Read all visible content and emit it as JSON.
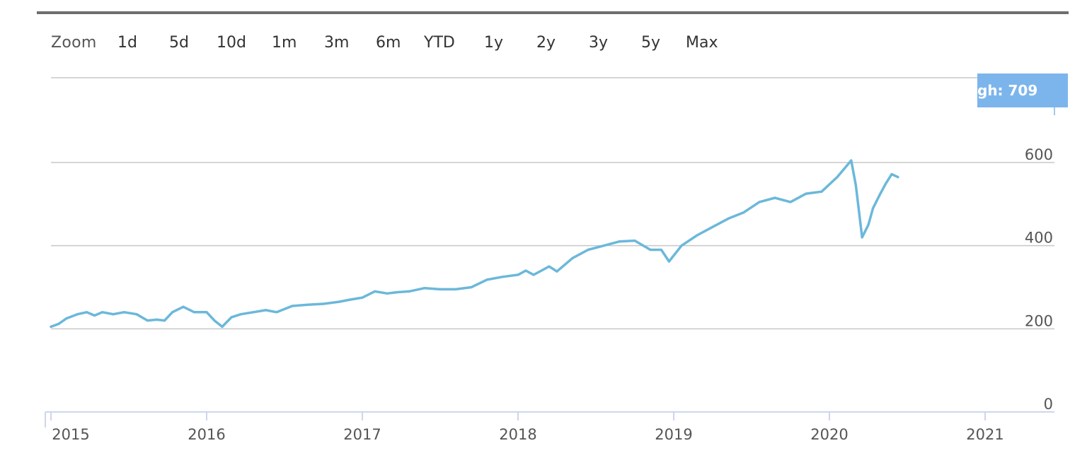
{
  "toolbar": {
    "zoom_label": "Zoom",
    "buttons": [
      "1d",
      "5d",
      "10d",
      "1m",
      "3m",
      "6m",
      "YTD",
      "1y",
      "2y",
      "3y",
      "5y",
      "Max"
    ]
  },
  "badge": {
    "text": "gh: 709"
  },
  "colors": {
    "line": "#6bb8da",
    "badge_bg": "#7cb5ec",
    "grid": "#c8c8c8",
    "axis": "#ccd6eb"
  },
  "chart_data": {
    "type": "line",
    "title": "",
    "xlabel": "",
    "ylabel": "",
    "xlim": [
      2015.0,
      2021.5
    ],
    "ylim": [
      0,
      709
    ],
    "x_ticks": [
      "2015",
      "2016",
      "2017",
      "2018",
      "2019",
      "2020",
      "2021"
    ],
    "y_ticks": [
      0,
      200,
      400,
      600
    ],
    "grid": true,
    "legend": "none",
    "series": [
      {
        "x": [
          2015.0,
          2015.05,
          2015.1,
          2015.17,
          2015.23,
          2015.28,
          2015.33,
          2015.4,
          2015.47,
          2015.55,
          2015.62,
          2015.68,
          2015.73,
          2015.78,
          2015.85,
          2015.92,
          2016.0,
          2016.05,
          2016.1,
          2016.16,
          2016.22,
          2016.3,
          2016.38,
          2016.45,
          2016.55,
          2016.65,
          2016.75,
          2016.85,
          2016.92,
          2017.0,
          2017.08,
          2017.16,
          2017.22,
          2017.3,
          2017.4,
          2017.5,
          2017.6,
          2017.7,
          2017.8,
          2017.9,
          2018.0,
          2018.05,
          2018.1,
          2018.15,
          2018.2,
          2018.25,
          2018.35,
          2018.45,
          2018.55,
          2018.65,
          2018.75,
          2018.85,
          2018.92,
          2018.97,
          2019.05,
          2019.15,
          2019.25,
          2019.35,
          2019.45,
          2019.55,
          2019.65,
          2019.75,
          2019.85,
          2019.95,
          2020.05,
          2020.14,
          2020.17,
          2020.21,
          2020.25,
          2020.28,
          2020.32,
          2020.36,
          2020.4,
          2020.44
        ],
        "y": [
          205,
          212,
          225,
          235,
          240,
          232,
          240,
          235,
          240,
          235,
          220,
          222,
          220,
          240,
          253,
          240,
          240,
          220,
          205,
          228,
          235,
          240,
          245,
          240,
          255,
          258,
          260,
          265,
          270,
          275,
          290,
          285,
          288,
          290,
          298,
          295,
          295,
          300,
          318,
          325,
          330,
          340,
          330,
          340,
          350,
          338,
          370,
          390,
          400,
          410,
          412,
          390,
          390,
          362,
          400,
          425,
          445,
          465,
          480,
          505,
          515,
          505,
          525,
          530,
          565,
          605,
          545,
          420,
          450,
          490,
          520,
          548,
          572,
          565
        ]
      }
    ]
  }
}
